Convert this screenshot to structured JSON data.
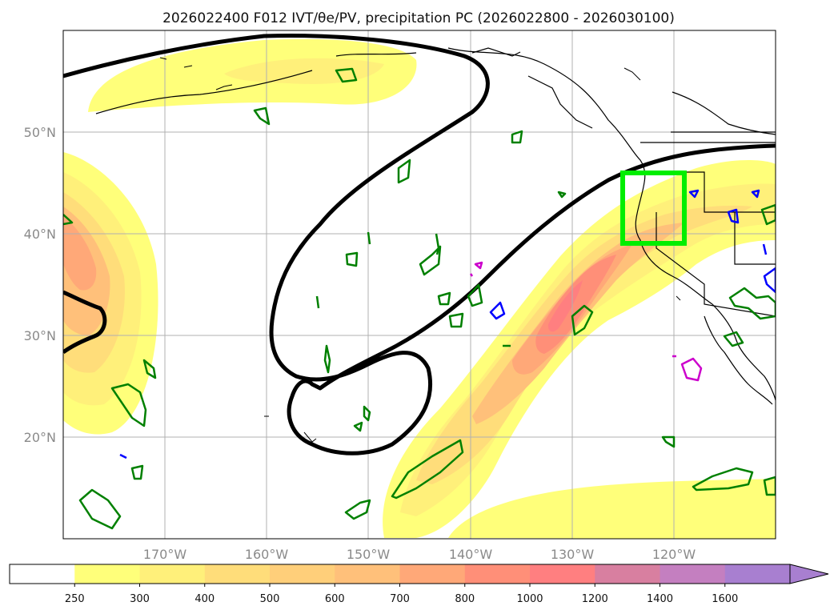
{
  "title": "2026022400 F012 IVT/θe/PV, precipitation PC (2026022800 - 2026030100)",
  "map": {
    "projection": "equirectangular",
    "lon_range": [
      -180,
      -110
    ],
    "lat_range": [
      10,
      60
    ],
    "lon_ticks": [
      "170°W",
      "160°W",
      "150°W",
      "140°W",
      "130°W",
      "120°W"
    ],
    "lat_ticks": [
      "50°N",
      "40°N",
      "30°N",
      "20°N"
    ],
    "gridlines": true,
    "highlight_box_color": "#00ee00"
  },
  "colorbar": {
    "levels": [
      "250",
      "300",
      "400",
      "500",
      "600",
      "700",
      "800",
      "1000",
      "1200",
      "1400",
      "1600"
    ],
    "colors": [
      "#ffff7a",
      "#fff07a",
      "#ffdd7a",
      "#ffcf7a",
      "#ffc07a",
      "#ffa878",
      "#ff8f78",
      "#ff7f80",
      "#d87fa0",
      "#c47fc0",
      "#a87fd0"
    ],
    "extend": "max"
  },
  "colors": {
    "ivt_low": "#ffff7a",
    "ivt_high": "#ff7f80",
    "pv_contour": "#008000",
    "blue_contour": "#0000ff",
    "magenta_contour": "#cc00cc",
    "theta_e_contour": "#000000"
  }
}
